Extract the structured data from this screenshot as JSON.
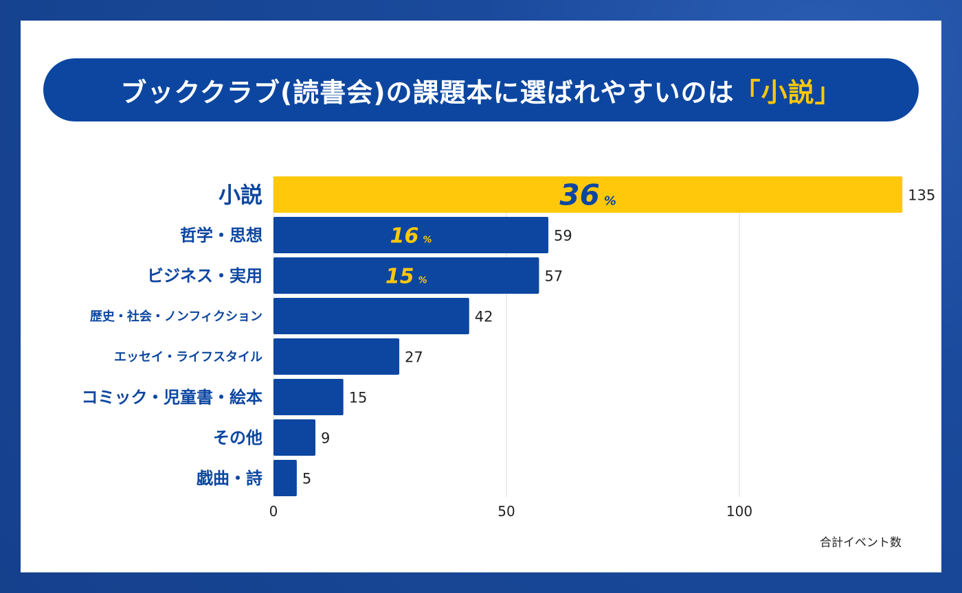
{
  "title": {
    "main": "ブッククラブ(読書会)の課題本に選ばれやすいのは",
    "accent": "「小説」"
  },
  "colors": {
    "bar": "#0c46a0",
    "highlight": "#ffc80a",
    "label": "#0c46a0",
    "grid": "#d9d9d9"
  },
  "chart_data": {
    "type": "bar",
    "orientation": "horizontal",
    "title": "ブッククラブ(読書会)の課題本に選ばれやすいのは「小説」",
    "xlabel": "合計イベント数",
    "ylabel": "",
    "xlim": [
      0,
      135
    ],
    "x_ticks": [
      0,
      50,
      100
    ],
    "grid": true,
    "categories": [
      "小説",
      "哲学・思想",
      "ビジネス・実用",
      "歴史・社会・ノンフィクション",
      "エッセイ・ライフスタイル",
      "コミック・児童書・絵本",
      "その他",
      "戯曲・詩"
    ],
    "values": [
      135,
      59,
      57,
      42,
      27,
      15,
      9,
      5
    ],
    "percent_labels": [
      {
        "index": 0,
        "value": "36",
        "unit": "%"
      },
      {
        "index": 1,
        "value": "16",
        "unit": "%"
      },
      {
        "index": 2,
        "value": "15",
        "unit": "%"
      }
    ],
    "highlight_index": 0
  }
}
